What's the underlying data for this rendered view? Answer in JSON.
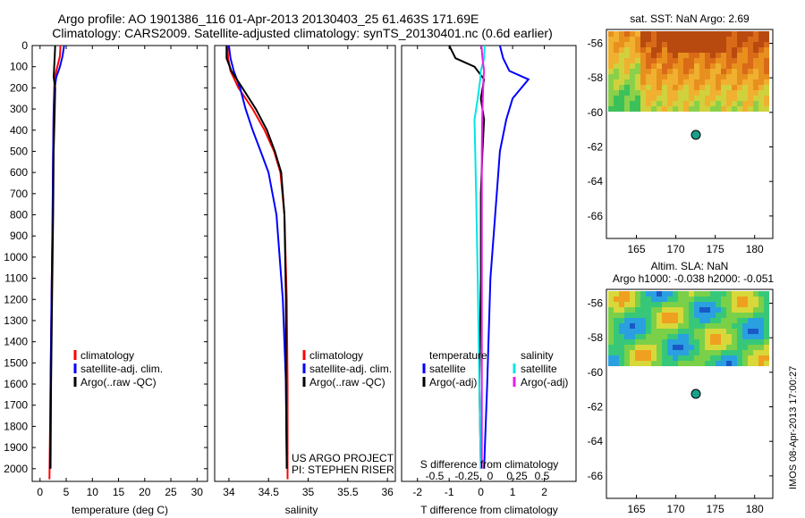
{
  "header": {
    "line1": "Argo profile: AO 1901386_116 01-Apr-2013 20130403_25 61.463S 171.69E",
    "line2": "Climatology: CARS2009. Satellite-adjusted climatology: synTS_20130401.nc (0.6d earlier)"
  },
  "colors": {
    "climatology": "#ff0000",
    "satellite": "#0000ff",
    "argo": "#000000",
    "satellite_salinity": "#00e5e5",
    "argo_salinity_adj": "#e61ee6"
  },
  "panels": {
    "temperature": {
      "xlabel": "temperature (deg C)",
      "xticks": [
        "0",
        "5",
        "10",
        "15",
        "20",
        "25",
        "30"
      ],
      "legend": [
        "climatology",
        "satellite-adj. clim.",
        "Argo(..raw -QC)"
      ]
    },
    "salinity": {
      "xlabel": "salinity",
      "xticks": [
        "34",
        "34.5",
        "35",
        "35.5",
        "36"
      ],
      "legend": [
        "climatology",
        "satellite-adj. clim.",
        "Argo(..raw -QC)"
      ],
      "note1": "US ARGO PROJECT",
      "note2": "PI: STEPHEN RISER"
    },
    "difference": {
      "xlabel": "T difference from climatology",
      "xticks": [
        "-2",
        "-1",
        "0",
        "1",
        "2"
      ],
      "top_label": "S difference from climatology",
      "top_xticks": [
        "-0.5",
        "-0.25",
        "0",
        "0.25",
        "0.5"
      ],
      "legend_temp_title": "temperature",
      "legend_sal_title": "salinity",
      "legend_temp": [
        "satellite",
        "Argo(-adj)"
      ],
      "legend_sal": [
        "satellite",
        "Argo(-adj)"
      ]
    },
    "depth_ticks": [
      "0",
      "100",
      "200",
      "300",
      "400",
      "500",
      "600",
      "700",
      "800",
      "900",
      "1000",
      "1100",
      "1200",
      "1300",
      "1400",
      "1500",
      "1600",
      "1700",
      "1800",
      "1900",
      "2000"
    ]
  },
  "maps": {
    "sst": {
      "title": "sat. SST: NaN Argo: 2.69",
      "yticks": [
        "-56",
        "-58",
        "-60",
        "-62",
        "-64",
        "-66"
      ],
      "xticks": [
        "165",
        "170",
        "175",
        "180"
      ]
    },
    "sla": {
      "title1": "Altim. SLA: NaN",
      "title2": "Argo h1000: -0.038 h2000: -0.051",
      "yticks": [
        "-56",
        "-58",
        "-60",
        "-62",
        "-64",
        "-66"
      ],
      "xticks": [
        "165",
        "170",
        "175",
        "180"
      ]
    },
    "float_position": {
      "lon": 171.69,
      "lat": -61.463
    }
  },
  "footer": {
    "stamp": "IMOS 08-Apr-2013 17:00:27"
  },
  "chart_data": [
    {
      "type": "line",
      "title": "",
      "xlabel": "temperature (deg C)",
      "ylabel": "",
      "xlim": [
        -1.5,
        32
      ],
      "ylim": [
        2060,
        0
      ],
      "series": [
        {
          "name": "climatology",
          "color": "#ff0000",
          "x": [
            3.9,
            3.8,
            3.3,
            2.8,
            2.7,
            2.6,
            2.5,
            2.4,
            2.2,
            2.0,
            1.8
          ],
          "y": [
            0,
            50,
            100,
            150,
            200,
            300,
            500,
            800,
            1200,
            1600,
            2050
          ]
        },
        {
          "name": "satellite-adj. clim.",
          "color": "#0000ff",
          "x": [
            4.6,
            4.3,
            3.8,
            3.1,
            2.8,
            2.6,
            2.5,
            2.4,
            2.2,
            2.0,
            1.9
          ],
          "y": [
            0,
            50,
            100,
            150,
            200,
            300,
            500,
            800,
            1200,
            1600,
            2000
          ]
        },
        {
          "name": "Argo(..raw -QC)",
          "color": "#000000",
          "x": [
            2.9,
            2.8,
            2.7,
            2.6,
            2.9,
            2.8,
            2.6,
            2.5,
            2.3,
            2.1,
            2.0
          ],
          "y": [
            0,
            50,
            100,
            150,
            200,
            300,
            500,
            800,
            1200,
            1600,
            2000
          ]
        }
      ]
    },
    {
      "type": "line",
      "title": "",
      "xlabel": "salinity",
      "ylabel": "",
      "xlim": [
        33.82,
        36.1
      ],
      "ylim": [
        2060,
        0
      ],
      "series": [
        {
          "name": "climatology",
          "color": "#ff0000",
          "x": [
            33.98,
            33.99,
            34.02,
            34.12,
            34.3,
            34.45,
            34.57,
            34.65,
            34.7,
            34.73,
            34.74,
            34.74
          ],
          "y": [
            0,
            60,
            120,
            200,
            300,
            400,
            500,
            600,
            800,
            1200,
            1600,
            2050
          ]
        },
        {
          "name": "satellite-adj. clim.",
          "color": "#0000ff",
          "x": [
            34.0,
            34.02,
            34.06,
            34.14,
            34.21,
            34.3,
            34.4,
            34.5,
            34.6,
            34.68,
            34.72,
            34.73
          ],
          "y": [
            0,
            60,
            120,
            200,
            300,
            400,
            500,
            600,
            800,
            1200,
            1600,
            2000
          ]
        },
        {
          "name": "Argo(..raw -QC)",
          "color": "#000000",
          "x": [
            33.97,
            33.97,
            34.03,
            34.17,
            34.34,
            34.48,
            34.58,
            34.66,
            34.7,
            34.72,
            34.72,
            34.73
          ],
          "y": [
            0,
            60,
            120,
            200,
            300,
            400,
            500,
            600,
            800,
            1200,
            1600,
            2000
          ]
        }
      ]
    },
    {
      "type": "line",
      "title": "",
      "xlabel": "T difference from climatology",
      "ylabel": "",
      "xlim": [
        -2.5,
        3.0
      ],
      "ylim": [
        2060,
        0
      ],
      "series": [
        {
          "name": "temperature satellite",
          "color": "#0000ff",
          "x": [
            0.6,
            0.7,
            0.9,
            1.5,
            1.0,
            0.8,
            0.6,
            0.5,
            0.3,
            0.2,
            0.1
          ],
          "y": [
            0,
            60,
            120,
            160,
            250,
            350,
            500,
            700,
            1100,
            1600,
            2000
          ]
        },
        {
          "name": "temperature Argo(-adj)",
          "color": "#000000",
          "x": [
            -1.0,
            -0.8,
            -0.2,
            0.1,
            0.0,
            0.1,
            0.05,
            0.0,
            0.0,
            -0.05,
            0.0
          ],
          "y": [
            0,
            60,
            100,
            160,
            250,
            350,
            500,
            700,
            1100,
            1600,
            2000
          ]
        },
        {
          "name": "salinity satellite",
          "color": "#00e5e5",
          "x": [
            0.12,
            0.1,
            0.0,
            -0.02,
            -0.1,
            -0.2,
            -0.18,
            -0.15,
            -0.1,
            -0.05,
            0.0
          ],
          "y": [
            0,
            60,
            120,
            160,
            250,
            350,
            500,
            700,
            1100,
            1600,
            2000
          ]
        },
        {
          "name": "salinity Argo(-adj)",
          "color": "#e61ee6",
          "x": [
            0.02,
            0.05,
            0.1,
            0.08,
            0.06,
            0.04,
            0.03,
            0.03,
            0.03,
            0.03,
            0.03
          ],
          "y": [
            0,
            60,
            120,
            160,
            250,
            350,
            500,
            700,
            1100,
            1600,
            2000
          ]
        }
      ]
    }
  ]
}
